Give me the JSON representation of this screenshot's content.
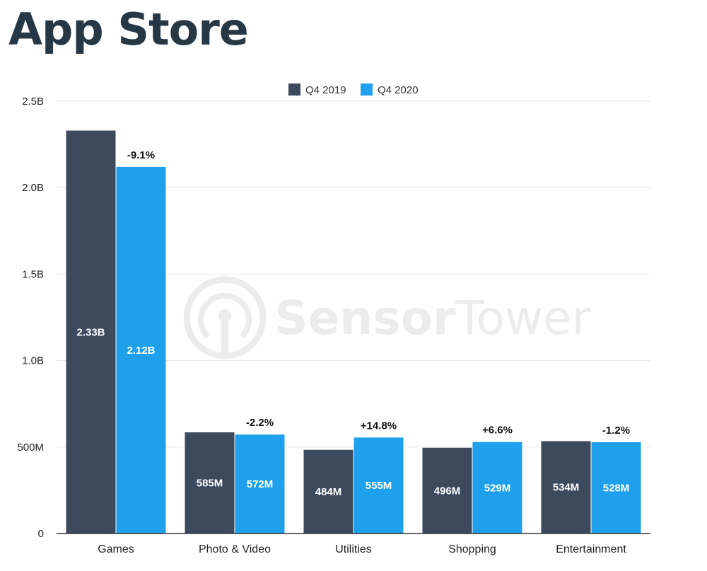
{
  "title": "App Store",
  "watermark": {
    "brand_bold": "Sensor",
    "brand_light": "Tower",
    "icon": "sensortower-logo-icon"
  },
  "colors": {
    "q4_2019": "#3d4a5e",
    "q4_2020": "#1fa0ec",
    "title": "#263746",
    "grid": "#e6e6e6",
    "axis": "#333333"
  },
  "chart_data": {
    "type": "bar",
    "title": "App Store",
    "categories": [
      "Games",
      "Photo & Video",
      "Utilities",
      "Shopping",
      "Entertainment"
    ],
    "series": [
      {
        "name": "Q4 2019",
        "values": [
          2330000000,
          585000000,
          484000000,
          496000000,
          534000000
        ],
        "labels": [
          "2.33B",
          "585M",
          "484M",
          "496M",
          "534M"
        ]
      },
      {
        "name": "Q4 2020",
        "values": [
          2120000000,
          572000000,
          555000000,
          529000000,
          528000000
        ],
        "labels": [
          "2.12B",
          "572M",
          "555M",
          "529M",
          "528M"
        ]
      }
    ],
    "changes": [
      "-9.1%",
      "-2.2%",
      "+14.8%",
      "+6.6%",
      "-1.2%"
    ],
    "ylim": [
      0,
      2500000000
    ],
    "yticks": [
      0,
      500000000,
      1000000000,
      1500000000,
      2000000000,
      2500000000
    ],
    "ytick_labels": [
      "0",
      "500M",
      "1.0B",
      "1.5B",
      "2.0B",
      "2.5B"
    ],
    "grid": true,
    "legend": "top-center",
    "xlabel": "",
    "ylabel": ""
  }
}
